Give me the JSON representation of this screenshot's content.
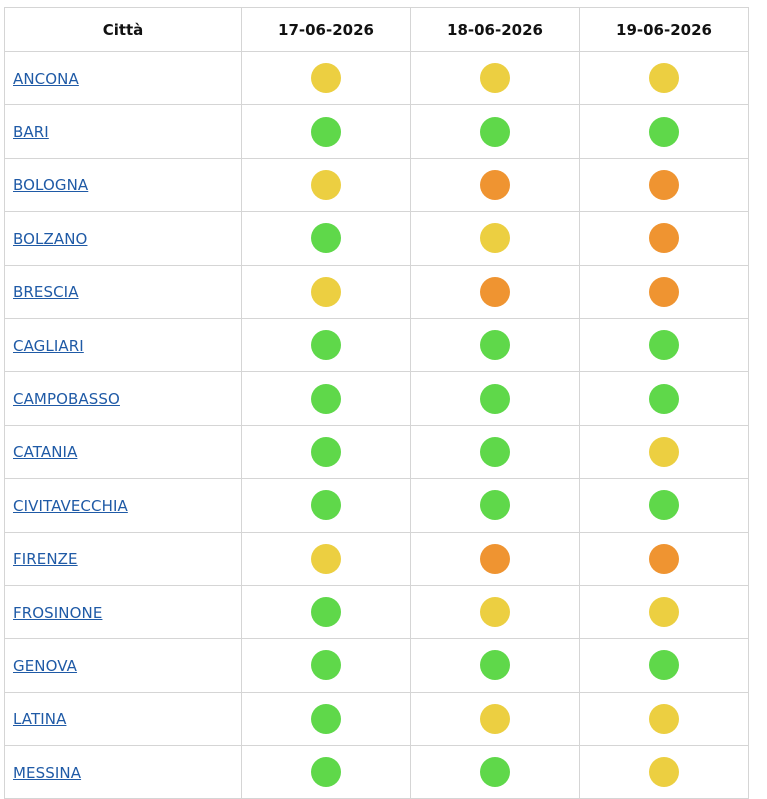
{
  "header": {
    "city": "Città",
    "dates": [
      "17-06-2026",
      "18-06-2026",
      "19-06-2026"
    ]
  },
  "colors": {
    "green": "#5fd84a",
    "yellow": "#eccf41",
    "orange": "#ef9431",
    "link": "#1f5aa6"
  },
  "rows": [
    {
      "city": "ANCONA",
      "levels": [
        "yellow",
        "yellow",
        "yellow"
      ]
    },
    {
      "city": "BARI",
      "levels": [
        "green",
        "green",
        "green"
      ]
    },
    {
      "city": "BOLOGNA",
      "levels": [
        "yellow",
        "orange",
        "orange"
      ]
    },
    {
      "city": "BOLZANO",
      "levels": [
        "green",
        "yellow",
        "orange"
      ]
    },
    {
      "city": "BRESCIA",
      "levels": [
        "yellow",
        "orange",
        "orange"
      ]
    },
    {
      "city": "CAGLIARI",
      "levels": [
        "green",
        "green",
        "green"
      ]
    },
    {
      "city": "CAMPOBASSO",
      "levels": [
        "green",
        "green",
        "green"
      ]
    },
    {
      "city": "CATANIA",
      "levels": [
        "green",
        "green",
        "yellow"
      ]
    },
    {
      "city": "CIVITAVECCHIA",
      "levels": [
        "green",
        "green",
        "green"
      ]
    },
    {
      "city": "FIRENZE",
      "levels": [
        "yellow",
        "orange",
        "orange"
      ]
    },
    {
      "city": "FROSINONE",
      "levels": [
        "green",
        "yellow",
        "yellow"
      ]
    },
    {
      "city": "GENOVA",
      "levels": [
        "green",
        "green",
        "green"
      ]
    },
    {
      "city": "LATINA",
      "levels": [
        "green",
        "yellow",
        "yellow"
      ]
    },
    {
      "city": "MESSINA",
      "levels": [
        "green",
        "green",
        "yellow"
      ]
    }
  ]
}
